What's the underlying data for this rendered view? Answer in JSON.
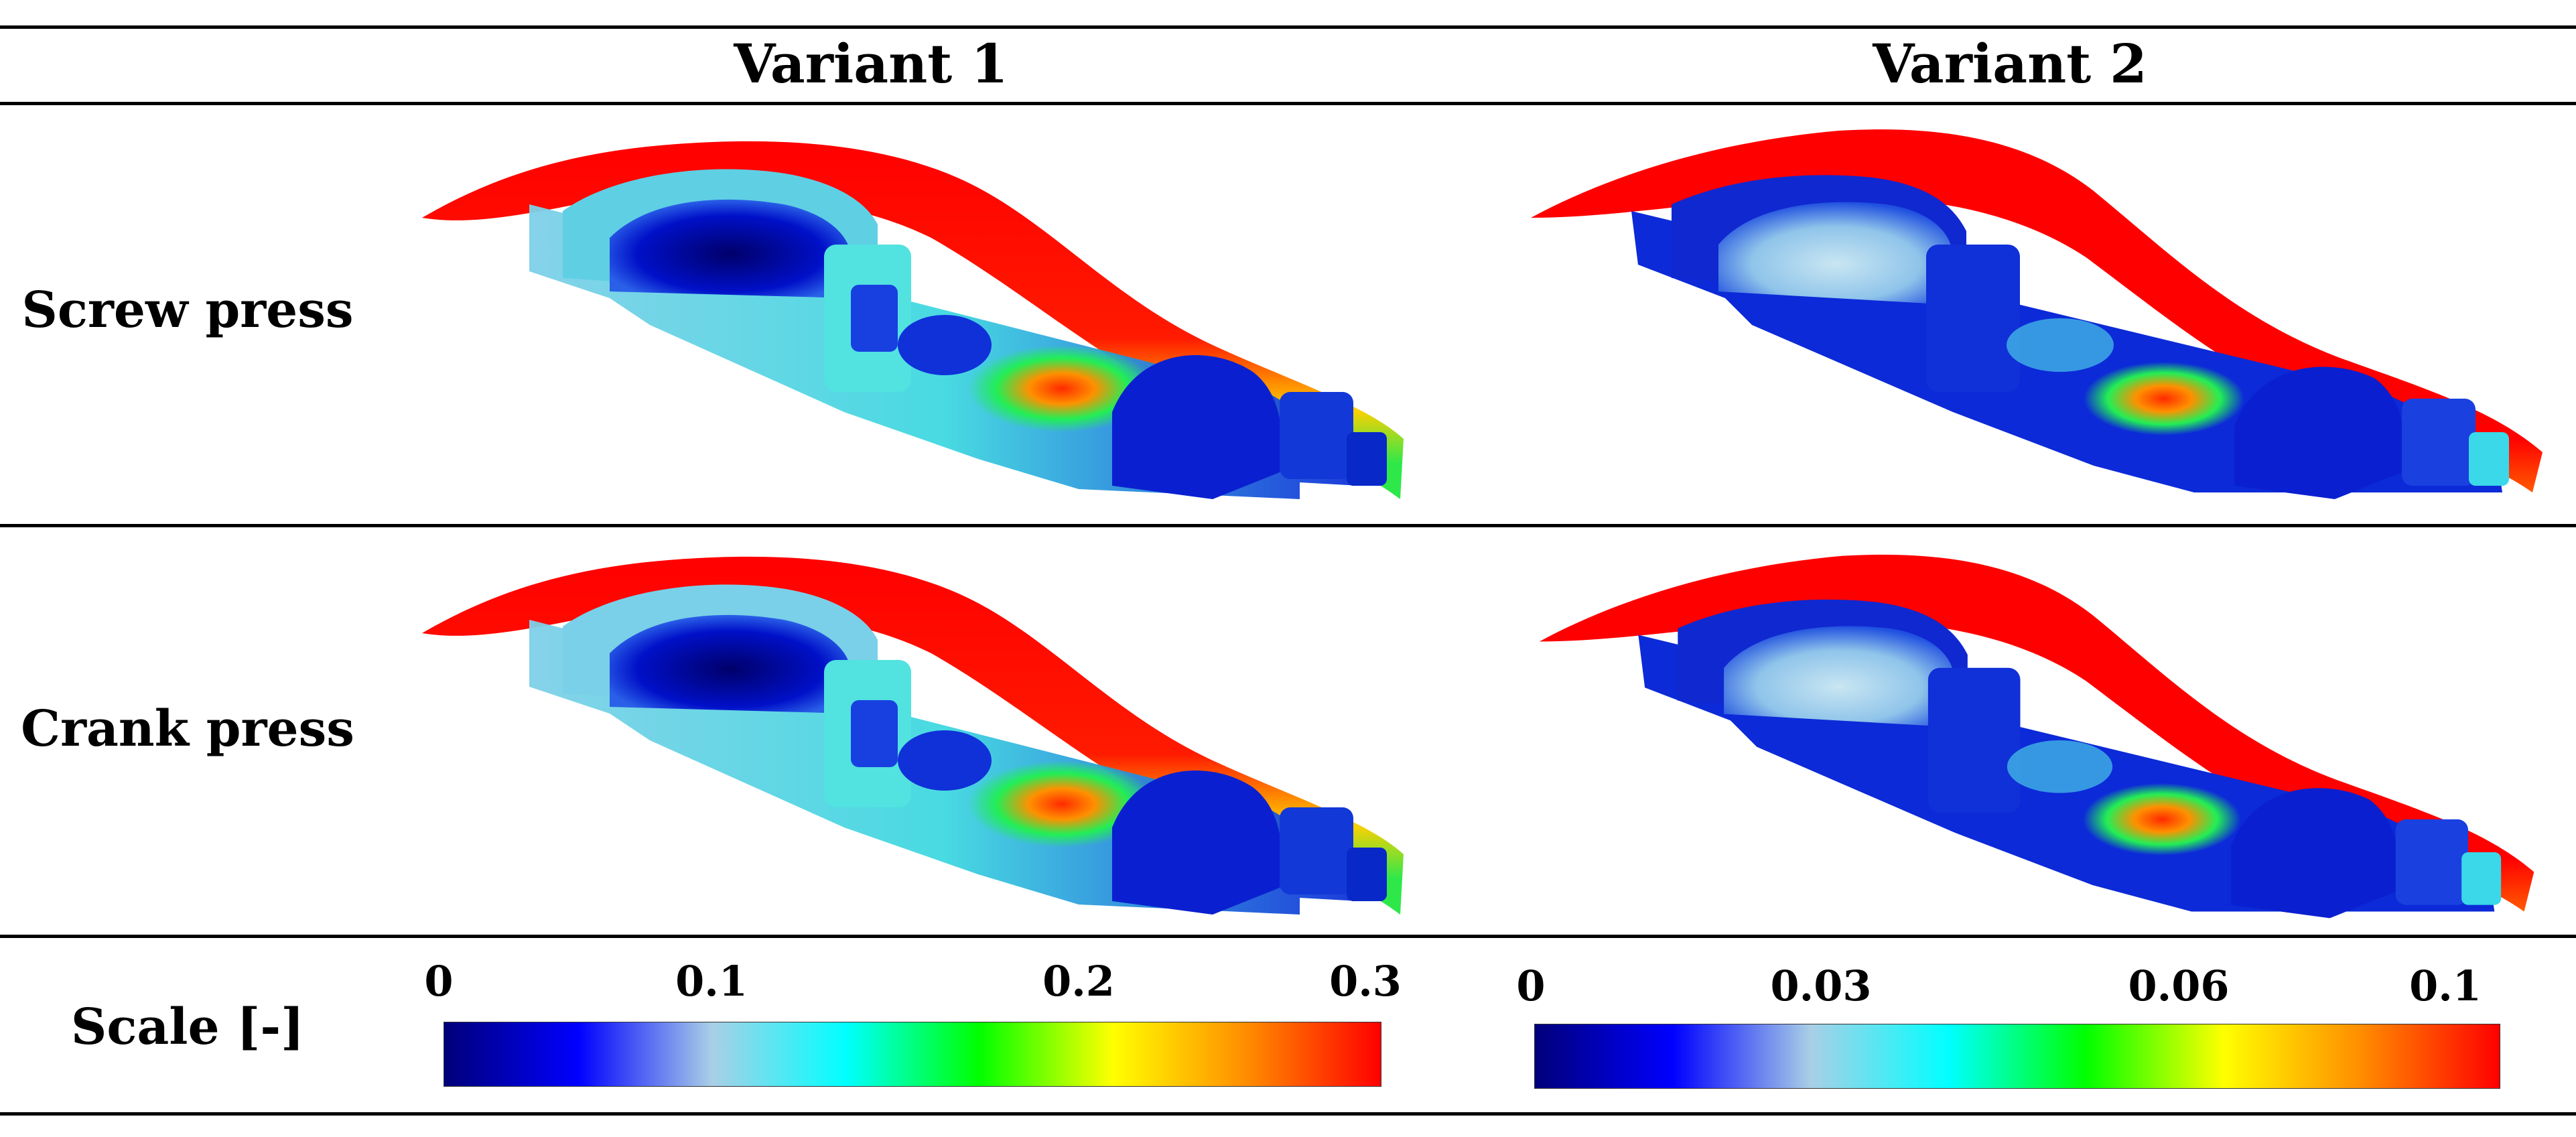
{
  "table": {
    "columns": [
      "Variant 1",
      "Variant 2"
    ],
    "rows": [
      {
        "label": "Screw press"
      },
      {
        "label": "Crank press"
      }
    ],
    "scale_label": "Scale [-]"
  },
  "scales": [
    {
      "ticks": [
        "0",
        "0.1",
        "0.2",
        "0.3"
      ],
      "range": [
        0,
        0.3
      ]
    },
    {
      "ticks": [
        "0",
        "0.03",
        "0.06",
        "0.1"
      ],
      "range": [
        0,
        0.1
      ]
    }
  ],
  "colormap": [
    "#00007a",
    "#0000ff",
    "#a9cfe6",
    "#00ffff",
    "#00ff00",
    "#ffff00",
    "#ff8c00",
    "#ff0000"
  ]
}
